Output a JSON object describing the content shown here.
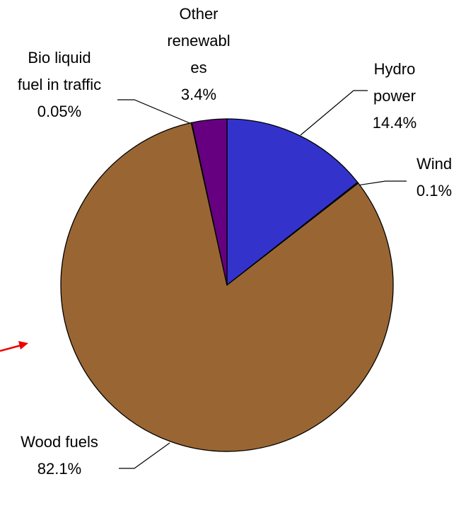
{
  "chart_data": {
    "type": "pie",
    "categories": [
      "Hydro power",
      "Wind",
      "Wood fuels",
      "Bio liquid fuel in traffic",
      "Other renewables"
    ],
    "values": [
      14.4,
      0.1,
      82.1,
      0.05,
      3.4
    ],
    "value_labels": [
      "14.4%",
      "0.1%",
      "82.1%",
      "0.05%",
      "3.4%"
    ],
    "colors": [
      "#3333cc",
      "#99ccff",
      "#996633",
      "#ffff99",
      "#660080"
    ]
  }
}
